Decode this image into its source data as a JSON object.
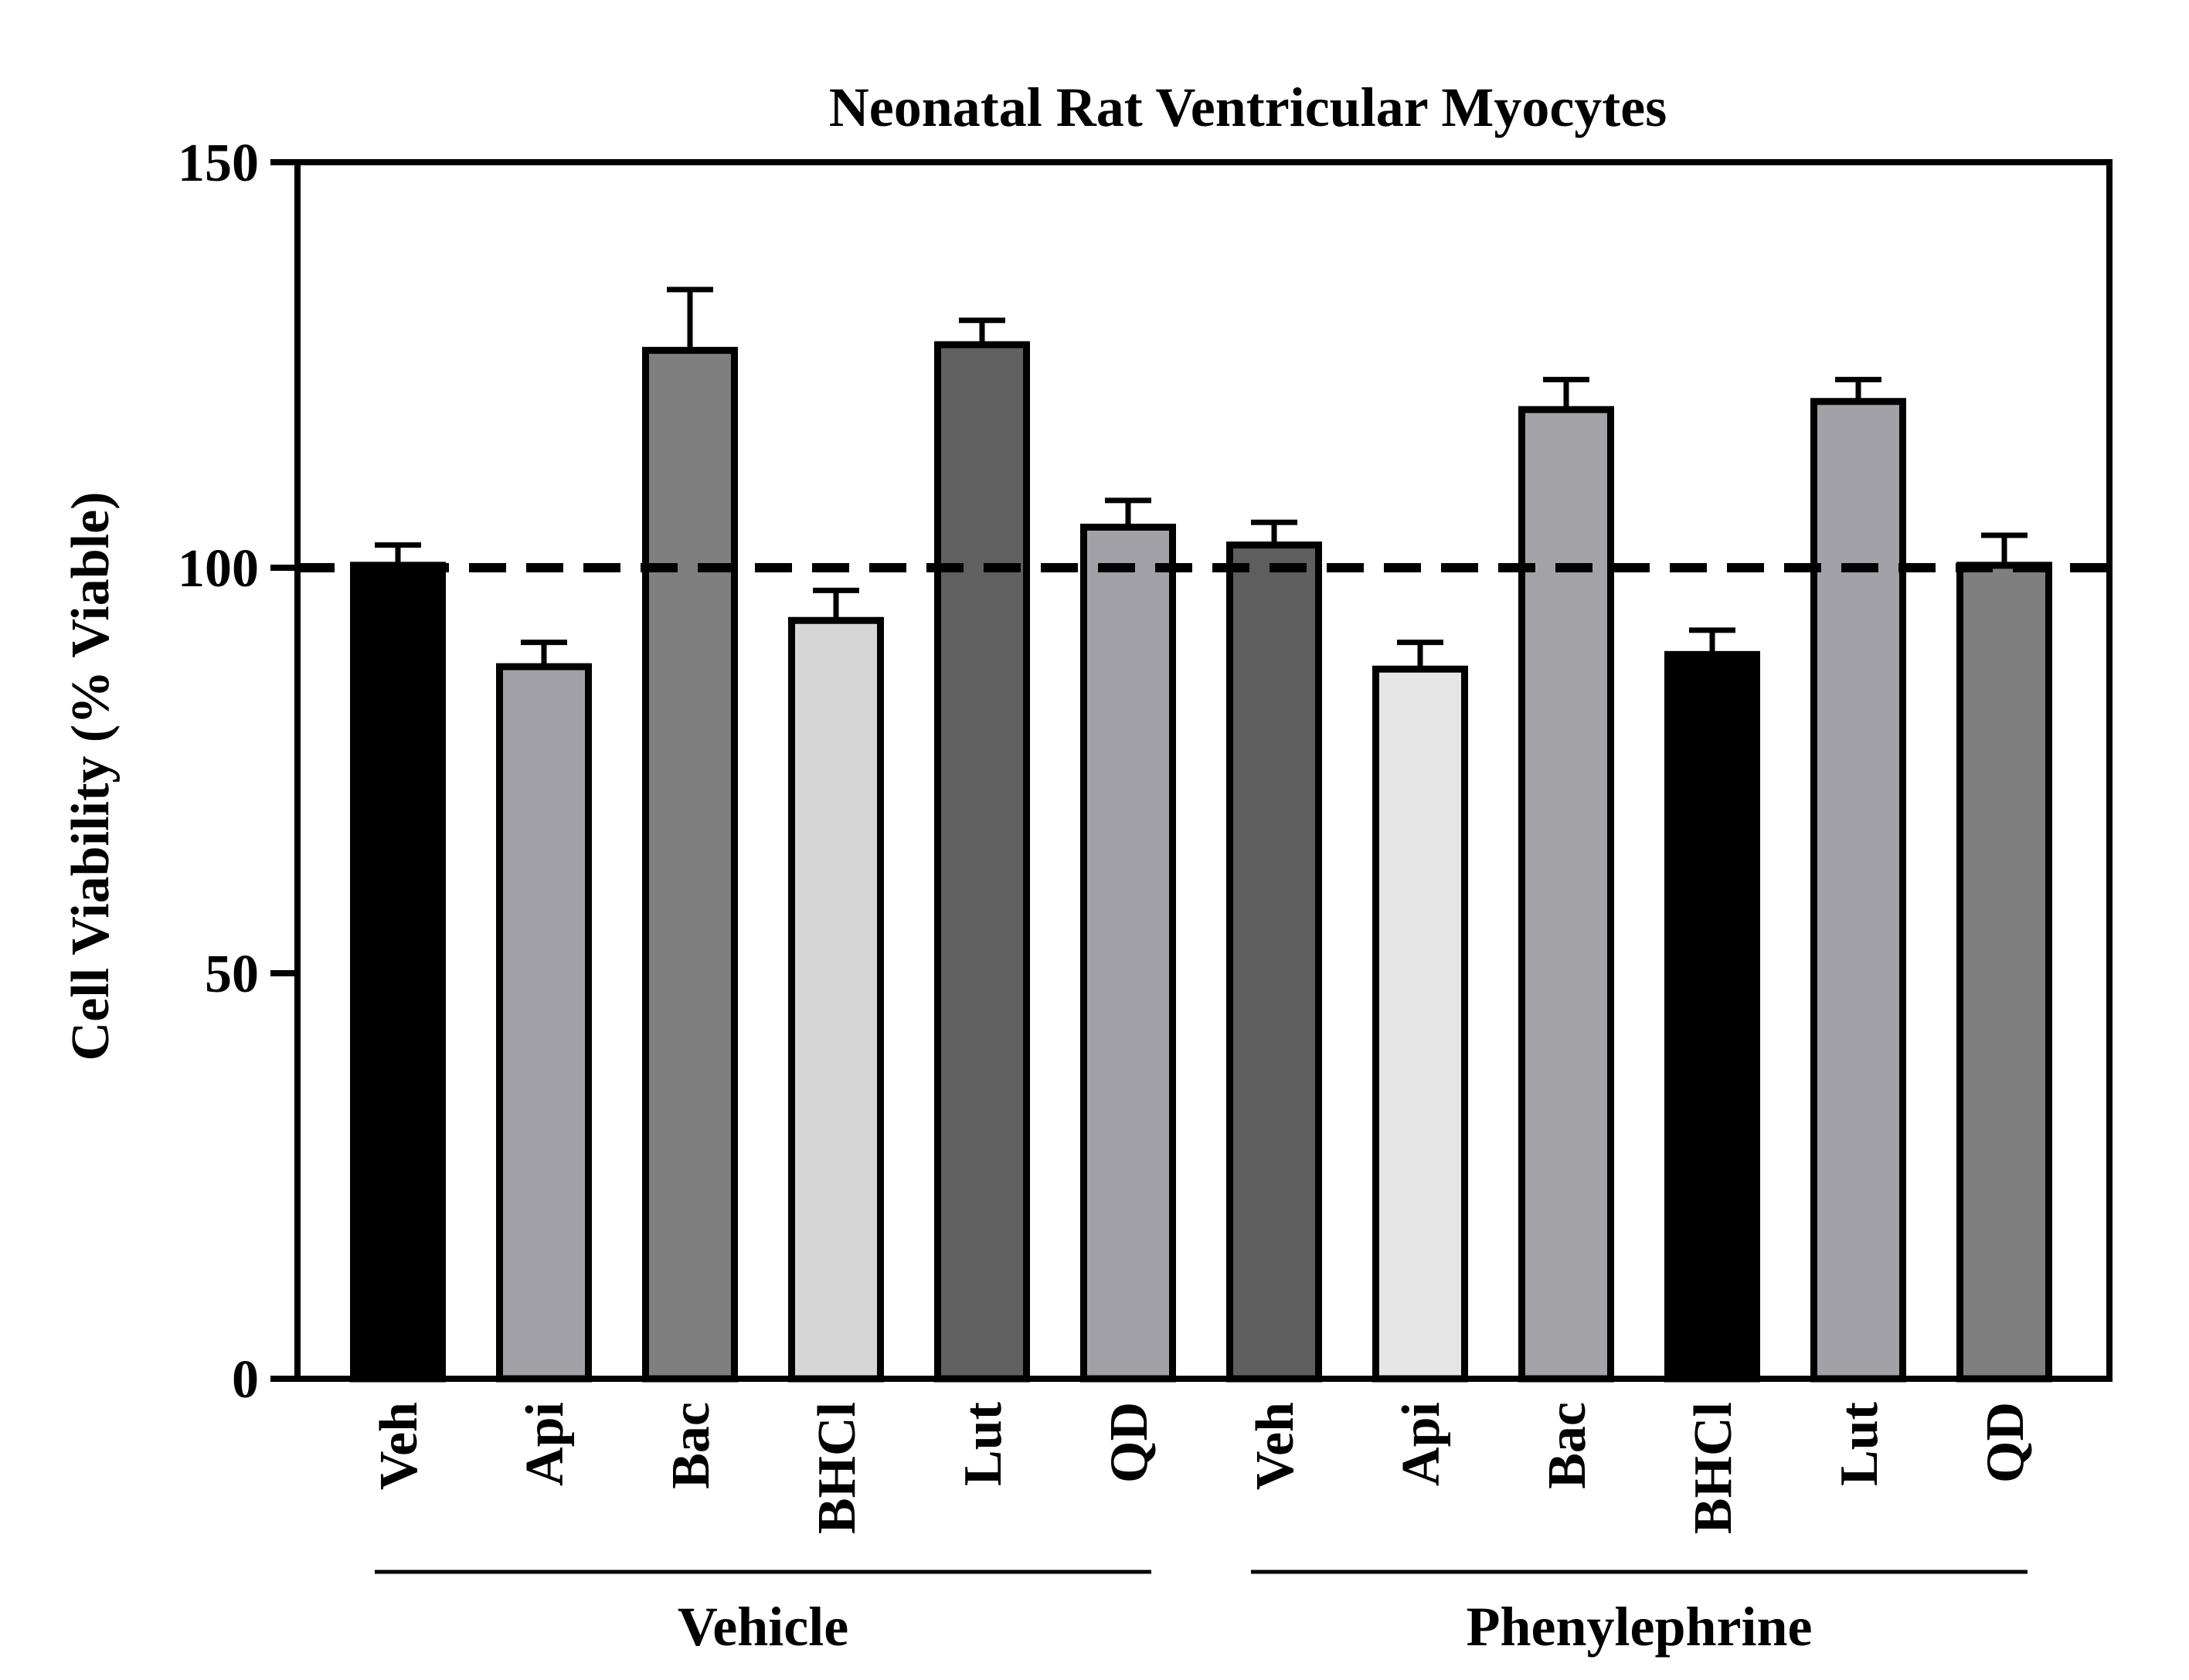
{
  "chart_data": {
    "type": "bar",
    "title": "Neonatal Rat Ventricular Myocytes",
    "xlabel": "",
    "ylabel": "Cell Viability (% Viable)",
    "ylim": [
      0,
      150
    ],
    "yticks": [
      0,
      50,
      100,
      150
    ],
    "reference_line": 100,
    "categories": [
      "Veh",
      "Api",
      "Bac",
      "BHCl",
      "Lut",
      "QD",
      "Veh",
      "Api",
      "Bac",
      "BHCl",
      "Lut",
      "QD"
    ],
    "values": [
      100.3,
      87.8,
      126.8,
      93.5,
      127.5,
      105.0,
      102.8,
      87.5,
      119.5,
      89.3,
      120.5,
      100.3
    ],
    "errors": [
      2.5,
      3.0,
      7.5,
      3.7,
      3.0,
      3.3,
      2.8,
      3.3,
      3.7,
      3.0,
      2.7,
      3.7
    ],
    "fills": [
      "#000000",
      "#a2a1a7",
      "#7f7f7f",
      "#d6d6d6",
      "#606060",
      "#a2a1a7",
      "#5e5e5e",
      "#e6e6e6",
      "#a3a2a7",
      "#000000",
      "#a2a1a7",
      "#7f7f7f"
    ],
    "groups": [
      {
        "label": "Vehicle",
        "start": 0,
        "end": 5
      },
      {
        "label": "Phenylephrine",
        "start": 6,
        "end": 11
      }
    ]
  }
}
